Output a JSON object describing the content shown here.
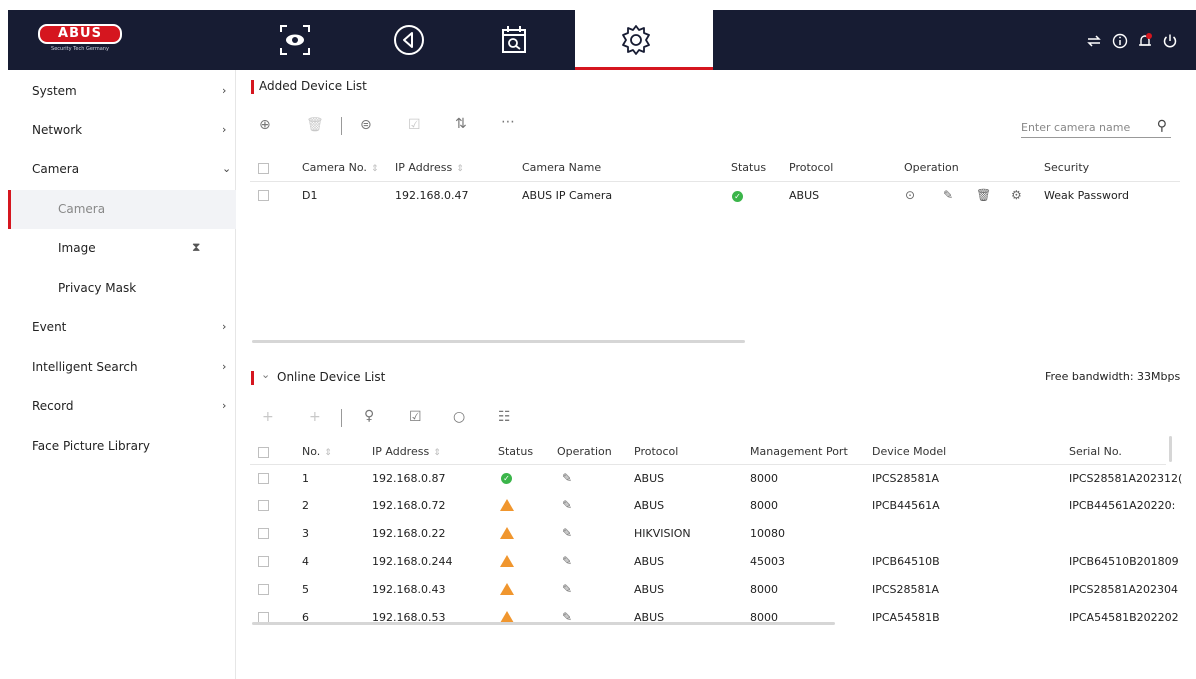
{
  "brand": {
    "logo_text": "ABUS",
    "tagline": "Security Tech Germany"
  },
  "topnav": {
    "icons": [
      "live-view-icon",
      "playback-icon",
      "search-calendar-icon",
      "settings-gear-icon"
    ],
    "active": "settings-gear-icon",
    "right_icons": [
      "network-icon",
      "info-icon",
      "notification-bell-icon",
      "power-icon"
    ]
  },
  "sidebar": {
    "items": [
      {
        "label": "System",
        "arrow": "›"
      },
      {
        "label": "Network",
        "arrow": "›"
      },
      {
        "label": "Camera",
        "arrow": "⌄"
      },
      {
        "label": "Camera",
        "sub": true,
        "active": true
      },
      {
        "label": "Image",
        "sub": true
      },
      {
        "label": "Privacy Mask",
        "sub": true
      },
      {
        "label": "Event",
        "arrow": "›"
      },
      {
        "label": "Intelligent Search",
        "arrow": "›"
      },
      {
        "label": "Record",
        "arrow": "›"
      },
      {
        "label": "Face Picture Library"
      }
    ]
  },
  "added": {
    "title": "Added Device List",
    "search_placeholder": "Enter camera name",
    "columns": {
      "camera_no": "Camera No.",
      "ip": "IP Address",
      "name": "Camera Name",
      "status": "Status",
      "protocol": "Protocol",
      "operation": "Operation",
      "security": "Security"
    },
    "rows": [
      {
        "camera_no": "D1",
        "ip": "192.168.0.47",
        "name": "ABUS IP Camera",
        "status": "ok",
        "protocol": "ABUS",
        "security": "Weak Password"
      }
    ]
  },
  "online": {
    "title": "Online Device List",
    "bandwidth": "Free bandwidth: 33Mbps",
    "columns": {
      "no": "No.",
      "ip": "IP Address",
      "status": "Status",
      "operation": "Operation",
      "protocol": "Protocol",
      "port": "Management Port",
      "model": "Device Model",
      "serial": "Serial No."
    },
    "rows": [
      {
        "no": "1",
        "ip": "192.168.0.87",
        "status": "ok",
        "protocol": "ABUS",
        "port": "8000",
        "model": "IPCS28581A",
        "serial": "IPCS28581A202312("
      },
      {
        "no": "2",
        "ip": "192.168.0.72",
        "status": "warn",
        "protocol": "ABUS",
        "port": "8000",
        "model": "IPCB44561A",
        "serial": "IPCB44561A20220:"
      },
      {
        "no": "3",
        "ip": "192.168.0.22",
        "status": "warn",
        "protocol": "HIKVISION",
        "port": "10080",
        "model": "",
        "serial": ""
      },
      {
        "no": "4",
        "ip": "192.168.0.244",
        "status": "warn",
        "protocol": "ABUS",
        "port": "45003",
        "model": "IPCB64510B",
        "serial": "IPCB64510B201809"
      },
      {
        "no": "5",
        "ip": "192.168.0.43",
        "status": "warn",
        "protocol": "ABUS",
        "port": "8000",
        "model": "IPCS28581A",
        "serial": "IPCS28581A202304"
      },
      {
        "no": "6",
        "ip": "192.168.0.53",
        "status": "warn",
        "protocol": "ABUS",
        "port": "8000",
        "model": "IPCA54581B",
        "serial": "IPCA54581B202202"
      }
    ]
  },
  "colors": {
    "topbar": "#171c33",
    "accent": "#d5161f",
    "ok": "#3bb54a",
    "warn": "#f0962e"
  }
}
